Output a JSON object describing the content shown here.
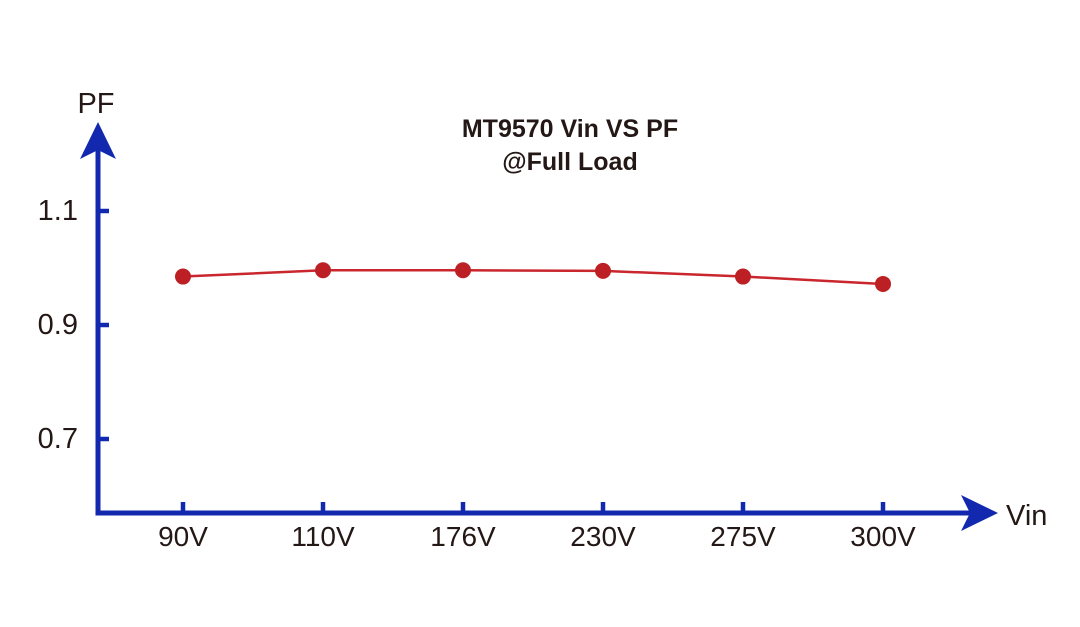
{
  "chart_data": {
    "type": "line",
    "title": "MT9570 Vin VS PF",
    "subtitle": "@Full Load",
    "xlabel": "Vin",
    "ylabel": "PF",
    "categories": [
      "90V",
      "110V",
      "176V",
      "230V",
      "275V",
      "300V"
    ],
    "series": [
      {
        "name": "PF",
        "values": [
          0.985,
          0.996,
          0.996,
          0.995,
          0.985,
          0.972
        ]
      }
    ],
    "y_ticks": [
      1.1,
      0.9,
      0.7
    ],
    "y_tick_labels": [
      "1.1",
      "0.9",
      "0.7"
    ],
    "ylim": [
      0.55,
      1.22
    ],
    "grid": false,
    "legend_position": "none",
    "colors": {
      "axis": "#1228ae",
      "series_line": "#c9262d",
      "series_marker": "#bc2025",
      "text": "#231815",
      "background": "#ffffff"
    }
  }
}
